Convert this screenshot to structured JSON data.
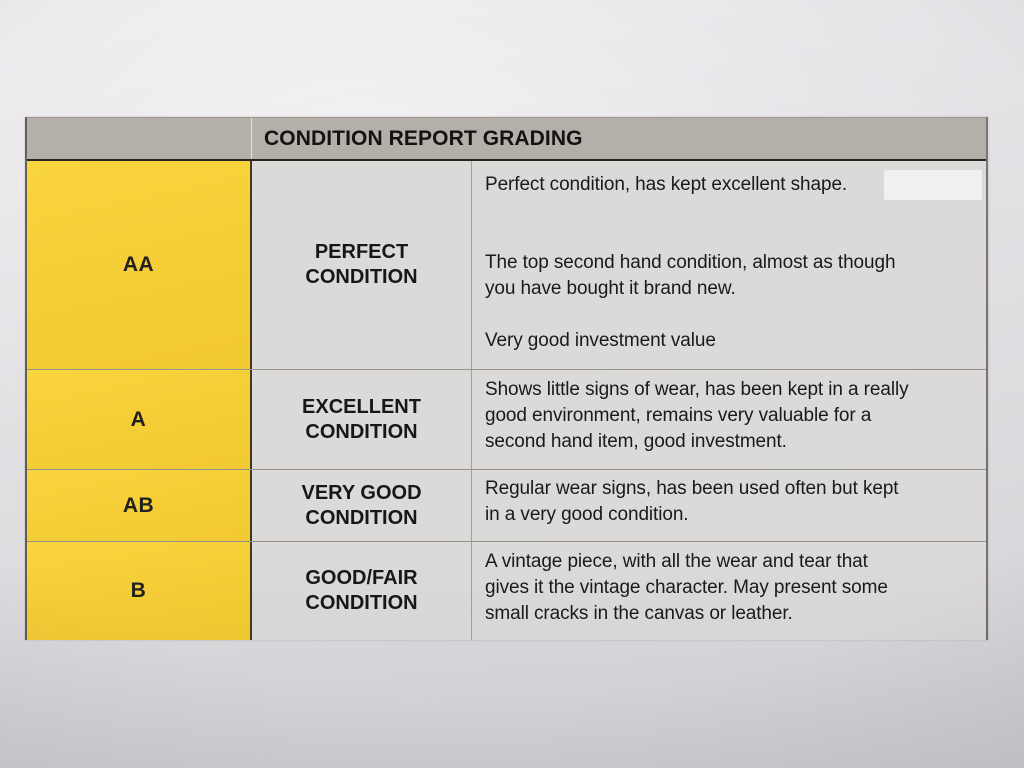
{
  "table": {
    "header": "CONDITION REPORT GRADING",
    "rows": [
      {
        "grade": "AA",
        "condition": "PERFECT CONDITION",
        "desc_lines": [
          "Perfect condition, has kept excellent shape.",
          "",
          "",
          "The top second hand condition, almost as though",
          "you have bought it brand new.",
          "",
          "Very good investment value"
        ]
      },
      {
        "grade": "A",
        "condition": "EXCELLENT CONDITION",
        "desc_lines": [
          "Shows little signs of wear, has been kept in a really",
          "good environment, remains very valuable for a",
          "second hand item, good investment."
        ]
      },
      {
        "grade": "AB",
        "condition": "VERY GOOD CONDITION",
        "desc_lines": [
          "Regular wear signs, has been used often but kept",
          "in a very good condition."
        ]
      },
      {
        "grade": "B",
        "condition": "GOOD/FAIR CONDITION",
        "desc_lines": [
          "A vintage piece, with all the wear and tear that",
          "gives it the vintage character. May present some",
          "small cracks in the canvas or leather."
        ]
      }
    ]
  },
  "colors": {
    "header_bg": "#b4b0a9",
    "grade_bg": "#f2c930",
    "grade_bg_light": "#f8d43e",
    "cell_bg": "#dcdad9",
    "text": "#1a191b",
    "border_dark": "#2b2925",
    "border_light": "#8d8a82"
  }
}
